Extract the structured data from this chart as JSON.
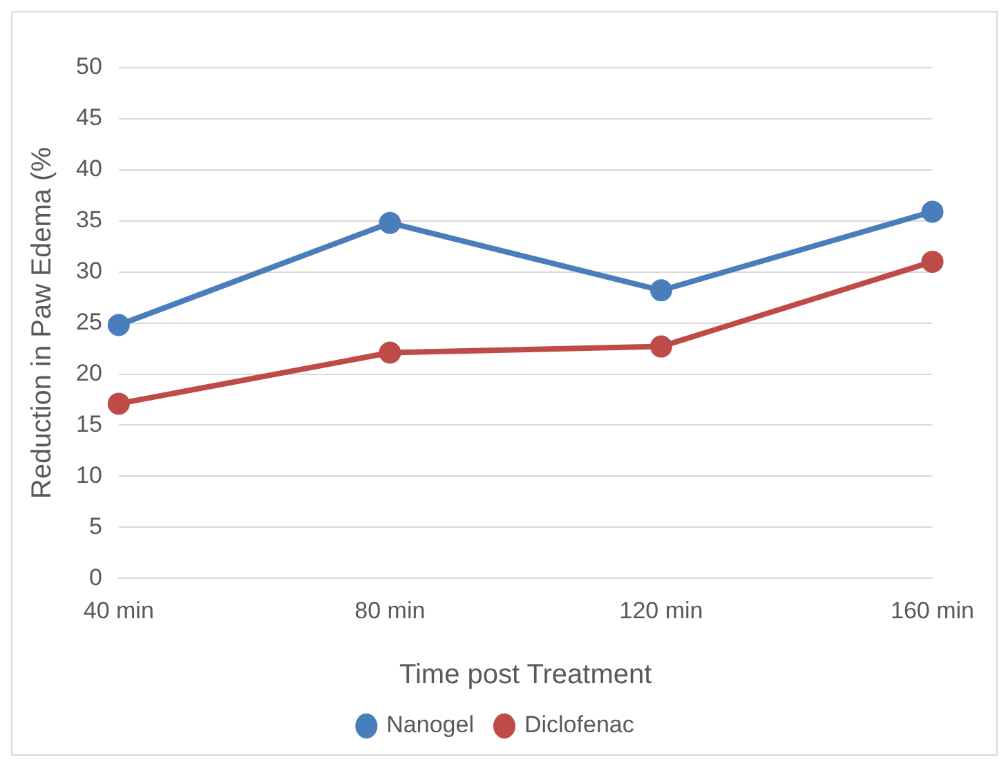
{
  "chart_data": {
    "type": "line",
    "xlabel": "Time post Treatment",
    "ylabel": "Reduction in Paw Edema (%",
    "categories": [
      "40 min",
      "80 min",
      "120 min",
      "160 min"
    ],
    "series": [
      {
        "name": "Nanogel",
        "color": "#4a7ebb",
        "values": [
          24.8,
          34.8,
          28.2,
          35.9
        ]
      },
      {
        "name": "Diclofenac",
        "color": "#be4b48",
        "values": [
          17.1,
          22.1,
          22.7,
          31.0
        ]
      }
    ],
    "ylim": [
      0,
      50
    ],
    "yticks": [
      0,
      5,
      10,
      15,
      20,
      25,
      30,
      35,
      40,
      45,
      50
    ],
    "grid": "y",
    "legend": "bottom",
    "marker": "circle",
    "line_style": "solid"
  }
}
